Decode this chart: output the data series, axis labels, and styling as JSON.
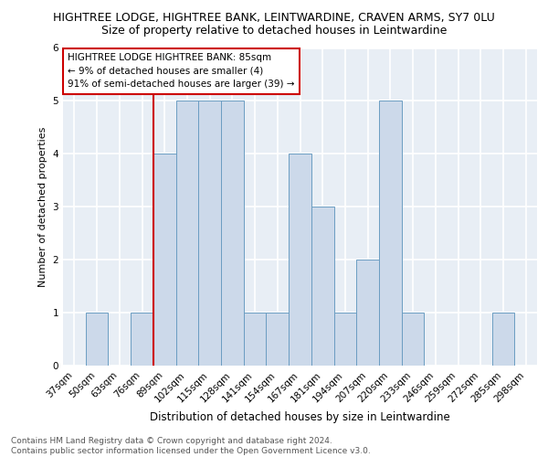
{
  "title_line1": "HIGHTREE LODGE, HIGHTREE BANK, LEINTWARDINE, CRAVEN ARMS, SY7 0LU",
  "title_line2": "Size of property relative to detached houses in Leintwardine",
  "xlabel": "Distribution of detached houses by size in Leintwardine",
  "ylabel": "Number of detached properties",
  "footnote": "Contains HM Land Registry data © Crown copyright and database right 2024.\nContains public sector information licensed under the Open Government Licence v3.0.",
  "bin_labels": [
    "37sqm",
    "50sqm",
    "63sqm",
    "76sqm",
    "89sqm",
    "102sqm",
    "115sqm",
    "128sqm",
    "141sqm",
    "154sqm",
    "167sqm",
    "181sqm",
    "194sqm",
    "207sqm",
    "220sqm",
    "233sqm",
    "246sqm",
    "259sqm",
    "272sqm",
    "285sqm",
    "298sqm"
  ],
  "bar_values": [
    0,
    1,
    0,
    1,
    4,
    5,
    5,
    5,
    1,
    1,
    4,
    3,
    1,
    2,
    5,
    1,
    0,
    0,
    0,
    1,
    0
  ],
  "bar_color": "#ccd9ea",
  "bar_edge_color": "#6b9dc2",
  "ylim": [
    0,
    6
  ],
  "yticks": [
    0,
    1,
    2,
    3,
    4,
    5,
    6
  ],
  "annotation_title": "HIGHTREE LODGE HIGHTREE BANK: 85sqm",
  "annotation_line1": "← 9% of detached houses are smaller (4)",
  "annotation_line2": "91% of semi-detached houses are larger (39) →",
  "annotation_box_color": "#ffffff",
  "annotation_border_color": "#cc0000",
  "vline_color": "#cc0000",
  "vline_x_idx": 3.5,
  "background_color": "#e8eef5",
  "grid_color": "#ffffff",
  "title1_fontsize": 9,
  "title2_fontsize": 9,
  "xlabel_fontsize": 8.5,
  "ylabel_fontsize": 8,
  "tick_fontsize": 7.5,
  "annotation_fontsize": 7.5,
  "footnote_fontsize": 6.5
}
